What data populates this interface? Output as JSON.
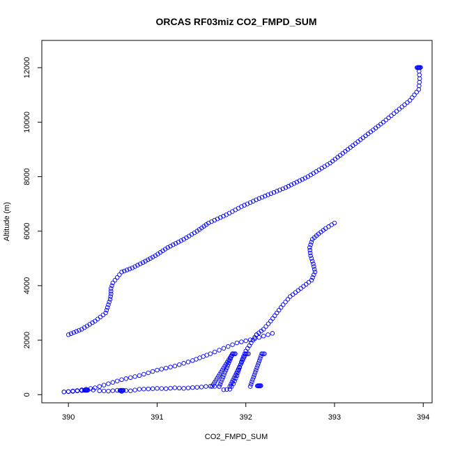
{
  "chart_data": {
    "type": "scatter",
    "title": "ORCAS RF03miz CO2_FMPD_SUM",
    "xlabel": "CO2_FMPD_SUM",
    "ylabel": "Altitude (m)",
    "xlim": [
      389.7,
      394.1
    ],
    "ylim": [
      -300,
      13000
    ],
    "x_ticks": [
      390,
      391,
      392,
      393,
      394
    ],
    "y_ticks": [
      0,
      2000,
      4000,
      6000,
      8000,
      10000,
      12000
    ],
    "color": "#0000ff",
    "marker": "open-circle",
    "legend": "none",
    "grid": false,
    "trace_descent_upper": [
      [
        393.95,
        12000
      ],
      [
        393.96,
        11600
      ],
      [
        393.95,
        11200
      ],
      [
        393.85,
        10800
      ],
      [
        393.7,
        10400
      ],
      [
        393.55,
        10000
      ],
      [
        393.35,
        9500
      ],
      [
        393.15,
        9000
      ],
      [
        392.95,
        8500
      ],
      [
        392.7,
        8000
      ],
      [
        392.45,
        7600
      ],
      [
        392.15,
        7200
      ],
      [
        391.95,
        6900
      ],
      [
        391.78,
        6600
      ],
      [
        391.58,
        6300
      ],
      [
        391.45,
        6000
      ],
      [
        391.3,
        5700
      ],
      [
        391.12,
        5400
      ],
      [
        390.98,
        5100
      ],
      [
        390.84,
        4850
      ],
      [
        390.72,
        4650
      ],
      [
        390.6,
        4500
      ],
      [
        390.55,
        4300
      ],
      [
        390.5,
        4100
      ],
      [
        390.48,
        3900
      ],
      [
        390.48,
        3700
      ],
      [
        390.47,
        3500
      ],
      [
        390.45,
        3300
      ],
      [
        390.42,
        3000
      ],
      [
        390.3,
        2700
      ],
      [
        390.15,
        2400
      ],
      [
        390.0,
        2200
      ]
    ],
    "trace_ascent_upper": [
      [
        393.0,
        6300
      ],
      [
        392.9,
        6100
      ],
      [
        392.82,
        5900
      ],
      [
        392.75,
        5700
      ],
      [
        392.72,
        5400
      ],
      [
        392.73,
        5100
      ],
      [
        392.76,
        4800
      ],
      [
        392.78,
        4500
      ],
      [
        392.74,
        4200
      ],
      [
        392.62,
        3900
      ],
      [
        392.5,
        3600
      ],
      [
        392.42,
        3300
      ],
      [
        392.35,
        3000
      ],
      [
        392.28,
        2700
      ],
      [
        392.2,
        2400
      ],
      [
        392.12,
        2200
      ]
    ],
    "trace_diagonal": [
      [
        392.3,
        2250
      ],
      [
        392.1,
        2050
      ],
      [
        391.9,
        1900
      ],
      [
        391.75,
        1700
      ],
      [
        391.6,
        1500
      ],
      [
        391.4,
        1250
      ],
      [
        391.2,
        1050
      ],
      [
        391.0,
        900
      ],
      [
        390.8,
        700
      ],
      [
        390.6,
        550
      ],
      [
        390.45,
        400
      ],
      [
        390.3,
        250
      ],
      [
        390.1,
        150
      ],
      [
        389.95,
        100
      ]
    ],
    "trace_ascent_lower": [
      [
        392.12,
        2200
      ],
      [
        392.06,
        1900
      ],
      [
        392.0,
        1600
      ],
      [
        391.96,
        1300
      ],
      [
        391.93,
        1000
      ],
      [
        391.9,
        700
      ],
      [
        391.86,
        400
      ],
      [
        391.82,
        200
      ],
      [
        391.75,
        180
      ]
    ],
    "trace_low_level": [
      [
        389.95,
        100
      ],
      [
        390.05,
        120
      ],
      [
        390.15,
        150
      ],
      [
        390.2,
        160
      ],
      [
        390.28,
        170
      ],
      [
        390.35,
        140
      ],
      [
        390.45,
        130
      ],
      [
        390.55,
        160
      ],
      [
        390.6,
        120
      ],
      [
        390.65,
        150
      ],
      [
        390.7,
        140
      ],
      [
        390.75,
        170
      ],
      [
        390.8,
        200
      ],
      [
        390.9,
        210
      ],
      [
        391.0,
        230
      ],
      [
        391.1,
        220
      ],
      [
        391.2,
        250
      ],
      [
        391.3,
        230
      ],
      [
        391.4,
        260
      ],
      [
        391.5,
        280
      ],
      [
        391.55,
        300
      ],
      [
        391.6,
        310
      ],
      [
        391.7,
        300
      ]
    ],
    "legs": [
      {
        "x_low": 391.62,
        "x_high": 391.85,
        "low": 300,
        "high": 1500
      },
      {
        "x_low": 391.7,
        "x_high": 391.85,
        "low": 300,
        "high": 1500
      },
      {
        "x_low": 391.82,
        "x_high": 392.0,
        "low": 300,
        "high": 1500
      },
      {
        "x_low": 392.05,
        "x_high": 392.18,
        "low": 300,
        "high": 1500
      }
    ],
    "end_clusters": [
      {
        "x": 393.95,
        "y": 12000
      },
      {
        "x": 390.6,
        "y": 150
      },
      {
        "x": 390.2,
        "y": 160
      },
      {
        "x": 392.15,
        "y": 320
      }
    ]
  }
}
